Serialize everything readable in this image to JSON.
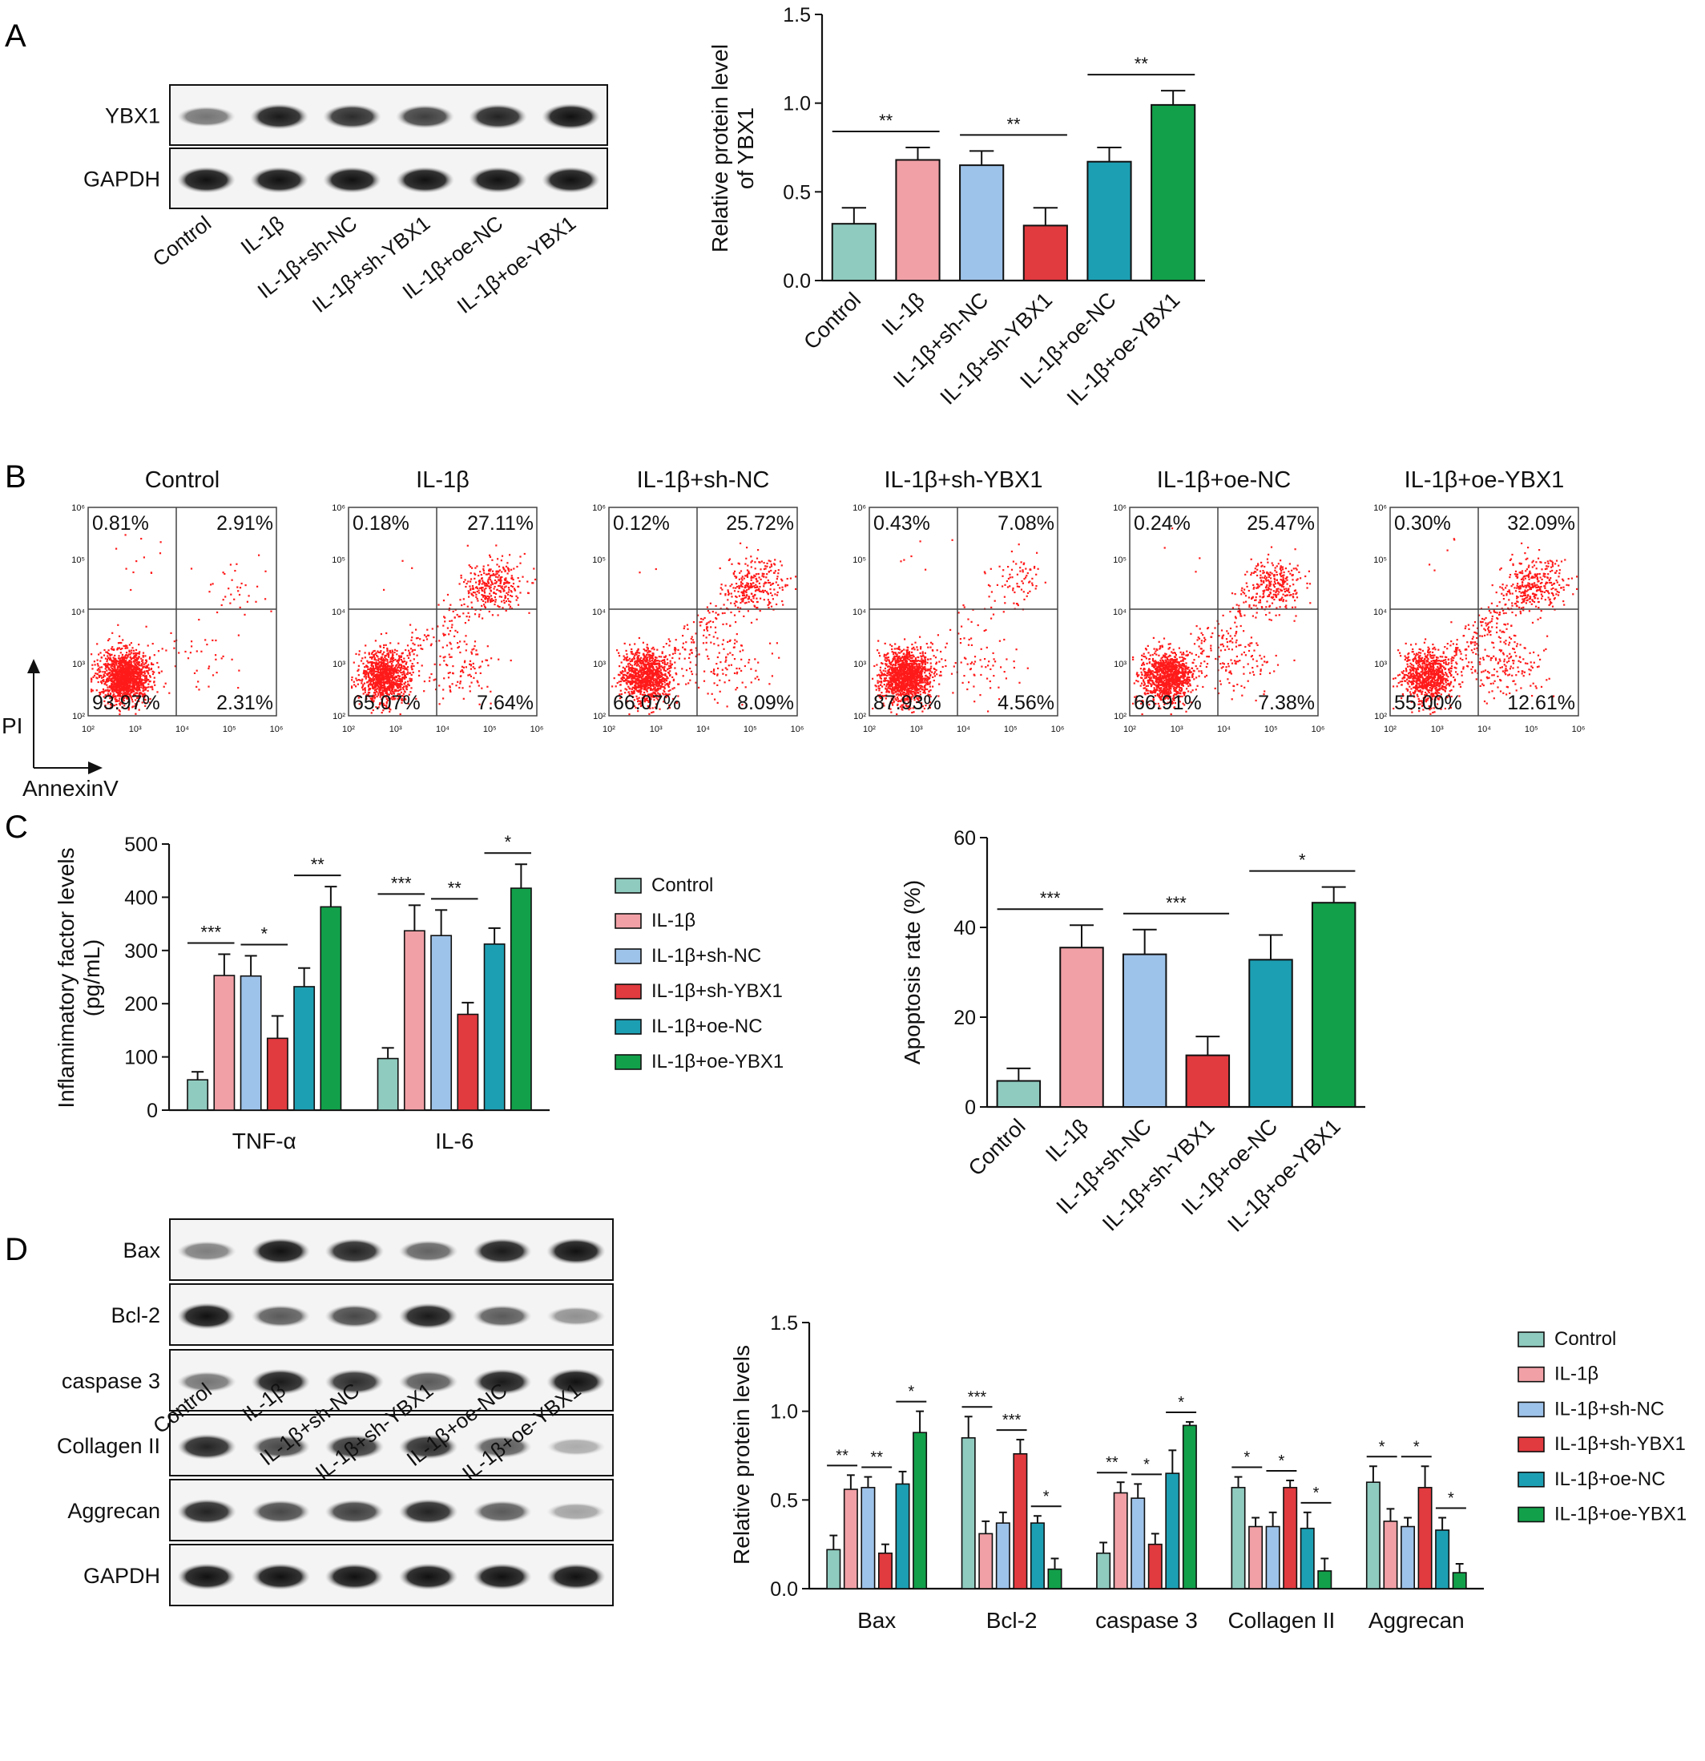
{
  "colors": [
    "#8fcbbf",
    "#f1a0a6",
    "#9ec3ea",
    "#e13a3f",
    "#1d9fb3",
    "#12a04a"
  ],
  "groups": [
    "Control",
    "IL-1β",
    "IL-1β+sh-NC",
    "IL-1β+sh-YBX1",
    "IL-1β+oe-NC",
    "IL-1β+oe-YBX1"
  ],
  "panels": {
    "A": {
      "letter": "A",
      "blot_labels": [
        "YBX1",
        "GAPDH"
      ],
      "blot_band_intensity": [
        [
          0.45,
          0.95,
          0.85,
          0.75,
          0.9,
          1.0
        ],
        [
          1,
          1,
          1,
          1,
          1,
          1
        ]
      ]
    },
    "B": {
      "letter": "B",
      "ylabel": "PI",
      "xlabel": "AnnexinV",
      "axis_ticks": [
        "10²",
        "10³",
        "10⁴",
        "10⁵",
        "10⁶"
      ],
      "plots": [
        {
          "title": "Control",
          "ul": "0.81%",
          "ur": "2.91%",
          "ll": "93.97%",
          "lr": "2.31%"
        },
        {
          "title": "IL-1β",
          "ul": "0.18%",
          "ur": "27.11%",
          "ll": "65.07%",
          "lr": "7.64%"
        },
        {
          "title": "IL-1β+sh-NC",
          "ul": "0.12%",
          "ur": "25.72%",
          "ll": "66.07%",
          "lr": "8.09%"
        },
        {
          "title": "IL-1β+sh-YBX1",
          "ul": "0.43%",
          "ur": "7.08%",
          "ll": "87.93%",
          "lr": "4.56%"
        },
        {
          "title": "IL-1β+oe-NC",
          "ul": "0.24%",
          "ur": "25.47%",
          "ll": "66.91%",
          "lr": "7.38%"
        },
        {
          "title": "IL-1β+oe-YBX1",
          "ul": "0.30%",
          "ur": "32.09%",
          "ll": "55.00%",
          "lr": "12.61%"
        }
      ]
    },
    "C": {
      "letter": "C"
    },
    "D": {
      "letter": "D",
      "blot_labels": [
        "Bax",
        "Bcl-2",
        "caspase 3",
        "Collagen II",
        "Aggrecan",
        "GAPDH"
      ],
      "blot_band_intensity": [
        [
          0.4,
          1.0,
          0.9,
          0.55,
          0.95,
          1.0
        ],
        [
          1.0,
          0.6,
          0.7,
          0.95,
          0.6,
          0.3
        ],
        [
          0.45,
          0.95,
          0.85,
          0.6,
          0.95,
          1.0
        ],
        [
          0.9,
          0.7,
          0.8,
          0.85,
          0.6,
          0.15
        ],
        [
          0.9,
          0.7,
          0.75,
          0.9,
          0.6,
          0.2
        ],
        [
          1,
          1,
          1,
          1,
          1,
          1
        ]
      ]
    }
  },
  "chart_data": [
    {
      "id": "A-bar",
      "type": "bar",
      "categories": [
        "Control",
        "IL-1β",
        "IL-1β+sh-NC",
        "IL-1β+sh-YBX1",
        "IL-1β+oe-NC",
        "IL-1β+oe-YBX1"
      ],
      "values": [
        0.32,
        0.68,
        0.65,
        0.31,
        0.67,
        0.99
      ],
      "errors": [
        0.09,
        0.07,
        0.08,
        0.1,
        0.08,
        0.08
      ],
      "ylabel": "Relative protein level of YBX1",
      "ylim": [
        0,
        1.5
      ],
      "yticks": [
        "0.0",
        "0.5",
        "1.0",
        "1.5"
      ],
      "significance": [
        {
          "pair": [
            0,
            1
          ],
          "label": "**"
        },
        {
          "pair": [
            2,
            3
          ],
          "label": "**"
        },
        {
          "pair": [
            4,
            5
          ],
          "label": "**"
        }
      ]
    },
    {
      "id": "C-grouped",
      "type": "bar",
      "categories": [
        "TNF-α",
        "IL-6"
      ],
      "series": [
        {
          "name": "Control",
          "values": [
            57,
            97
          ],
          "errors": [
            15,
            20
          ]
        },
        {
          "name": "IL-1β",
          "values": [
            253,
            337
          ],
          "errors": [
            40,
            48
          ]
        },
        {
          "name": "IL-1β+sh-NC",
          "values": [
            252,
            328
          ],
          "errors": [
            38,
            48
          ]
        },
        {
          "name": "IL-1β+sh-YBX1",
          "values": [
            135,
            180
          ],
          "errors": [
            42,
            22
          ]
        },
        {
          "name": "IL-1β+oe-NC",
          "values": [
            232,
            312
          ],
          "errors": [
            35,
            30
          ]
        },
        {
          "name": "IL-1β+oe-YBX1",
          "values": [
            382,
            417
          ],
          "errors": [
            38,
            45
          ]
        }
      ],
      "ylabel": "Inflamimatory factor levels (pg/mL)",
      "ylim": [
        0,
        500
      ],
      "yticks": [
        "0",
        "100",
        "200",
        "300",
        "400",
        "500"
      ],
      "legend": "right",
      "significance": [
        {
          "category": 0,
          "pair": [
            0,
            1
          ],
          "label": "***"
        },
        {
          "category": 0,
          "pair": [
            2,
            3
          ],
          "label": "*"
        },
        {
          "category": 0,
          "pair": [
            4,
            5
          ],
          "label": "**"
        },
        {
          "category": 1,
          "pair": [
            0,
            1
          ],
          "label": "***"
        },
        {
          "category": 1,
          "pair": [
            2,
            3
          ],
          "label": "**"
        },
        {
          "category": 1,
          "pair": [
            4,
            5
          ],
          "label": "*"
        }
      ]
    },
    {
      "id": "C-apoptosis",
      "type": "bar",
      "categories": [
        "Control",
        "IL-1β",
        "IL-1β+sh-NC",
        "IL-1β+sh-YBX1",
        "IL-1β+oe-NC",
        "IL-1β+oe-YBX1"
      ],
      "values": [
        5.8,
        35.5,
        34,
        11.5,
        32.8,
        45.5
      ],
      "errors": [
        2.8,
        5,
        5.5,
        4.2,
        5.5,
        3.5
      ],
      "ylabel": "Apoptosis rate (%)",
      "ylim": [
        0,
        60
      ],
      "yticks": [
        "0",
        "20",
        "40",
        "60"
      ],
      "significance": [
        {
          "pair": [
            0,
            1
          ],
          "label": "***"
        },
        {
          "pair": [
            2,
            3
          ],
          "label": "***"
        },
        {
          "pair": [
            4,
            5
          ],
          "label": "*"
        }
      ]
    },
    {
      "id": "D-grouped",
      "type": "bar",
      "categories": [
        "Bax",
        "Bcl-2",
        "caspase 3",
        "Collagen II",
        "Aggrecan"
      ],
      "series": [
        {
          "name": "Control",
          "values": [
            0.22,
            0.85,
            0.2,
            0.57,
            0.6
          ],
          "errors": [
            0.08,
            0.12,
            0.06,
            0.06,
            0.09
          ]
        },
        {
          "name": "IL-1β",
          "values": [
            0.56,
            0.31,
            0.54,
            0.35,
            0.38
          ],
          "errors": [
            0.08,
            0.07,
            0.06,
            0.05,
            0.07
          ]
        },
        {
          "name": "IL-1β+sh-NC",
          "values": [
            0.57,
            0.37,
            0.51,
            0.35,
            0.35
          ],
          "errors": [
            0.06,
            0.06,
            0.08,
            0.08,
            0.05
          ]
        },
        {
          "name": "IL-1β+sh-YBX1",
          "values": [
            0.2,
            0.76,
            0.25,
            0.57,
            0.57
          ],
          "errors": [
            0.05,
            0.08,
            0.06,
            0.04,
            0.12
          ]
        },
        {
          "name": "IL-1β+oe-NC",
          "values": [
            0.59,
            0.37,
            0.65,
            0.34,
            0.33
          ],
          "errors": [
            0.07,
            0.04,
            0.13,
            0.09,
            0.07
          ]
        },
        {
          "name": "IL-1β+oe-YBX1",
          "values": [
            0.88,
            0.11,
            0.92,
            0.1,
            0.09
          ],
          "errors": [
            0.12,
            0.06,
            0.02,
            0.07,
            0.05
          ]
        }
      ],
      "ylabel": "Relative protein levels",
      "ylim": [
        0,
        1.5
      ],
      "yticks": [
        "0.0",
        "0.5",
        "1.0",
        "1.5"
      ],
      "legend": "right",
      "significance": [
        {
          "category": 0,
          "pair": [
            0,
            1
          ],
          "label": "**"
        },
        {
          "category": 0,
          "pair": [
            2,
            3
          ],
          "label": "**"
        },
        {
          "category": 0,
          "pair": [
            4,
            5
          ],
          "label": "*"
        },
        {
          "category": 1,
          "pair": [
            0,
            1
          ],
          "label": "***"
        },
        {
          "category": 1,
          "pair": [
            2,
            3
          ],
          "label": "***"
        },
        {
          "category": 1,
          "pair": [
            4,
            5
          ],
          "label": "*"
        },
        {
          "category": 2,
          "pair": [
            0,
            1
          ],
          "label": "**"
        },
        {
          "category": 2,
          "pair": [
            2,
            3
          ],
          "label": "*"
        },
        {
          "category": 2,
          "pair": [
            4,
            5
          ],
          "label": "*"
        },
        {
          "category": 3,
          "pair": [
            0,
            1
          ],
          "label": "*"
        },
        {
          "category": 3,
          "pair": [
            2,
            3
          ],
          "label": "*"
        },
        {
          "category": 3,
          "pair": [
            4,
            5
          ],
          "label": "*"
        },
        {
          "category": 4,
          "pair": [
            0,
            1
          ],
          "label": "*"
        },
        {
          "category": 4,
          "pair": [
            2,
            3
          ],
          "label": "*"
        },
        {
          "category": 4,
          "pair": [
            4,
            5
          ],
          "label": "*"
        }
      ]
    }
  ]
}
